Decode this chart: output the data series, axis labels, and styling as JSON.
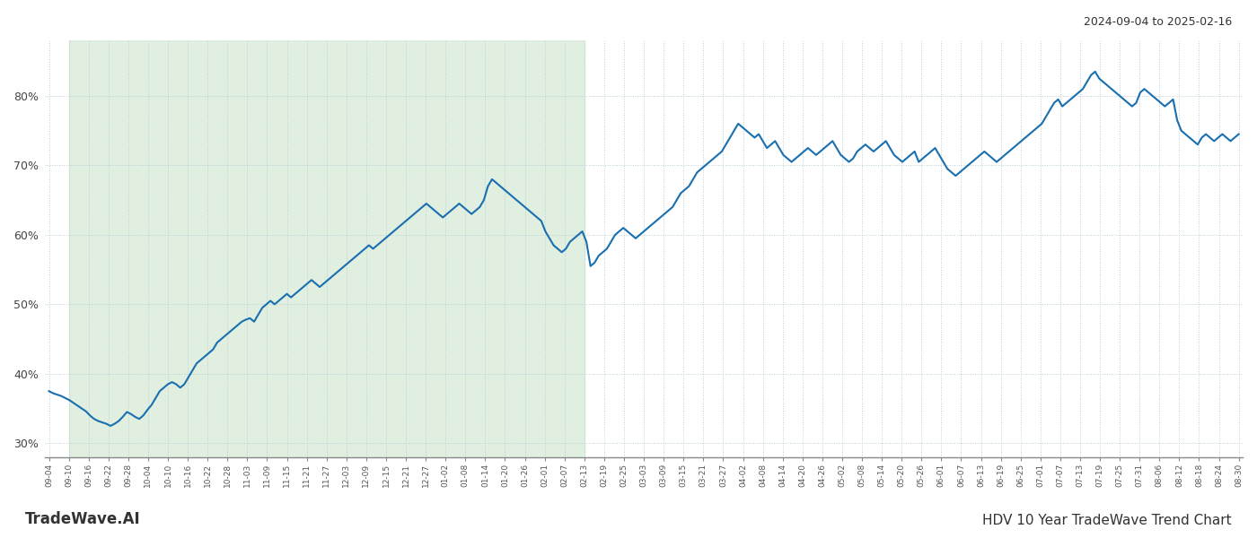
{
  "title_top_right": "2024-09-04 to 2025-02-16",
  "title_bottom_left": "TradeWave.AI",
  "title_bottom_right": "HDV 10 Year TradeWave Trend Chart",
  "line_color": "#1a6faf",
  "line_width": 1.5,
  "bg_color": "#ffffff",
  "grid_color": "#b8cfd8",
  "shade_color": "#d4e9d4",
  "shade_alpha": 0.7,
  "ylim": [
    28,
    88
  ],
  "yticks": [
    30,
    40,
    50,
    60,
    70,
    80
  ],
  "shade_start_label": "09-10",
  "shade_end_label": "02-13",
  "x_labels": [
    "09-04",
    "09-10",
    "09-16",
    "09-22",
    "09-28",
    "10-04",
    "10-10",
    "10-16",
    "10-22",
    "10-28",
    "11-03",
    "11-09",
    "11-15",
    "11-21",
    "11-27",
    "12-03",
    "12-09",
    "12-15",
    "12-21",
    "12-27",
    "01-02",
    "01-08",
    "01-14",
    "01-20",
    "01-26",
    "02-01",
    "02-07",
    "02-13",
    "02-19",
    "02-25",
    "03-03",
    "03-09",
    "03-15",
    "03-21",
    "03-27",
    "04-02",
    "04-08",
    "04-14",
    "04-20",
    "04-26",
    "05-02",
    "05-08",
    "05-14",
    "05-20",
    "05-26",
    "06-01",
    "06-07",
    "06-13",
    "06-19",
    "06-25",
    "07-01",
    "07-07",
    "07-13",
    "07-19",
    "07-25",
    "07-31",
    "08-06",
    "08-12",
    "08-18",
    "08-24",
    "08-30"
  ],
  "values": [
    37.5,
    37.2,
    37.0,
    36.8,
    36.5,
    36.2,
    35.8,
    35.4,
    35.0,
    34.6,
    34.0,
    33.5,
    33.2,
    33.0,
    32.8,
    32.5,
    32.8,
    33.2,
    33.8,
    34.5,
    34.2,
    33.8,
    33.5,
    34.0,
    34.8,
    35.5,
    36.5,
    37.5,
    38.0,
    38.5,
    38.8,
    38.5,
    38.0,
    38.5,
    39.5,
    40.5,
    41.5,
    42.0,
    42.5,
    43.0,
    43.5,
    44.5,
    45.0,
    45.5,
    46.0,
    46.5,
    47.0,
    47.5,
    47.8,
    48.0,
    47.5,
    48.5,
    49.5,
    50.0,
    50.5,
    50.0,
    50.5,
    51.0,
    51.5,
    51.0,
    51.5,
    52.0,
    52.5,
    53.0,
    53.5,
    53.0,
    52.5,
    53.0,
    53.5,
    54.0,
    54.5,
    55.0,
    55.5,
    56.0,
    56.5,
    57.0,
    57.5,
    58.0,
    58.5,
    58.0,
    58.5,
    59.0,
    59.5,
    60.0,
    60.5,
    61.0,
    61.5,
    62.0,
    62.5,
    63.0,
    63.5,
    64.0,
    64.5,
    64.0,
    63.5,
    63.0,
    62.5,
    63.0,
    63.5,
    64.0,
    64.5,
    64.0,
    63.5,
    63.0,
    63.5,
    64.0,
    65.0,
    67.0,
    68.0,
    67.5,
    67.0,
    66.5,
    66.0,
    65.5,
    65.0,
    64.5,
    64.0,
    63.5,
    63.0,
    62.5,
    62.0,
    60.5,
    59.5,
    58.5,
    58.0,
    57.5,
    58.0,
    59.0,
    59.5,
    60.0,
    60.5,
    59.0,
    55.5,
    56.0,
    57.0,
    57.5,
    58.0,
    59.0,
    60.0,
    60.5,
    61.0,
    60.5,
    60.0,
    59.5,
    60.0,
    60.5,
    61.0,
    61.5,
    62.0,
    62.5,
    63.0,
    63.5,
    64.0,
    65.0,
    66.0,
    66.5,
    67.0,
    68.0,
    69.0,
    69.5,
    70.0,
    70.5,
    71.0,
    71.5,
    72.0,
    73.0,
    74.0,
    75.0,
    76.0,
    75.5,
    75.0,
    74.5,
    74.0,
    74.5,
    73.5,
    72.5,
    73.0,
    73.5,
    72.5,
    71.5,
    71.0,
    70.5,
    71.0,
    71.5,
    72.0,
    72.5,
    72.0,
    71.5,
    72.0,
    72.5,
    73.0,
    73.5,
    72.5,
    71.5,
    71.0,
    70.5,
    71.0,
    72.0,
    72.5,
    73.0,
    72.5,
    72.0,
    72.5,
    73.0,
    73.5,
    72.5,
    71.5,
    71.0,
    70.5,
    71.0,
    71.5,
    72.0,
    70.5,
    71.0,
    71.5,
    72.0,
    72.5,
    71.5,
    70.5,
    69.5,
    69.0,
    68.5,
    69.0,
    69.5,
    70.0,
    70.5,
    71.0,
    71.5,
    72.0,
    71.5,
    71.0,
    70.5,
    71.0,
    71.5,
    72.0,
    72.5,
    73.0,
    73.5,
    74.0,
    74.5,
    75.0,
    75.5,
    76.0,
    77.0,
    78.0,
    79.0,
    79.5,
    78.5,
    79.0,
    79.5,
    80.0,
    80.5,
    81.0,
    82.0,
    83.0,
    83.5,
    82.5,
    82.0,
    81.5,
    81.0,
    80.5,
    80.0,
    79.5,
    79.0,
    78.5,
    79.0,
    80.5,
    81.0,
    80.5,
    80.0,
    79.5,
    79.0,
    78.5,
    79.0,
    79.5,
    76.5,
    75.0,
    74.5,
    74.0,
    73.5,
    73.0,
    74.0,
    74.5,
    74.0,
    73.5,
    74.0,
    74.5,
    74.0,
    73.5,
    74.0,
    74.5
  ]
}
